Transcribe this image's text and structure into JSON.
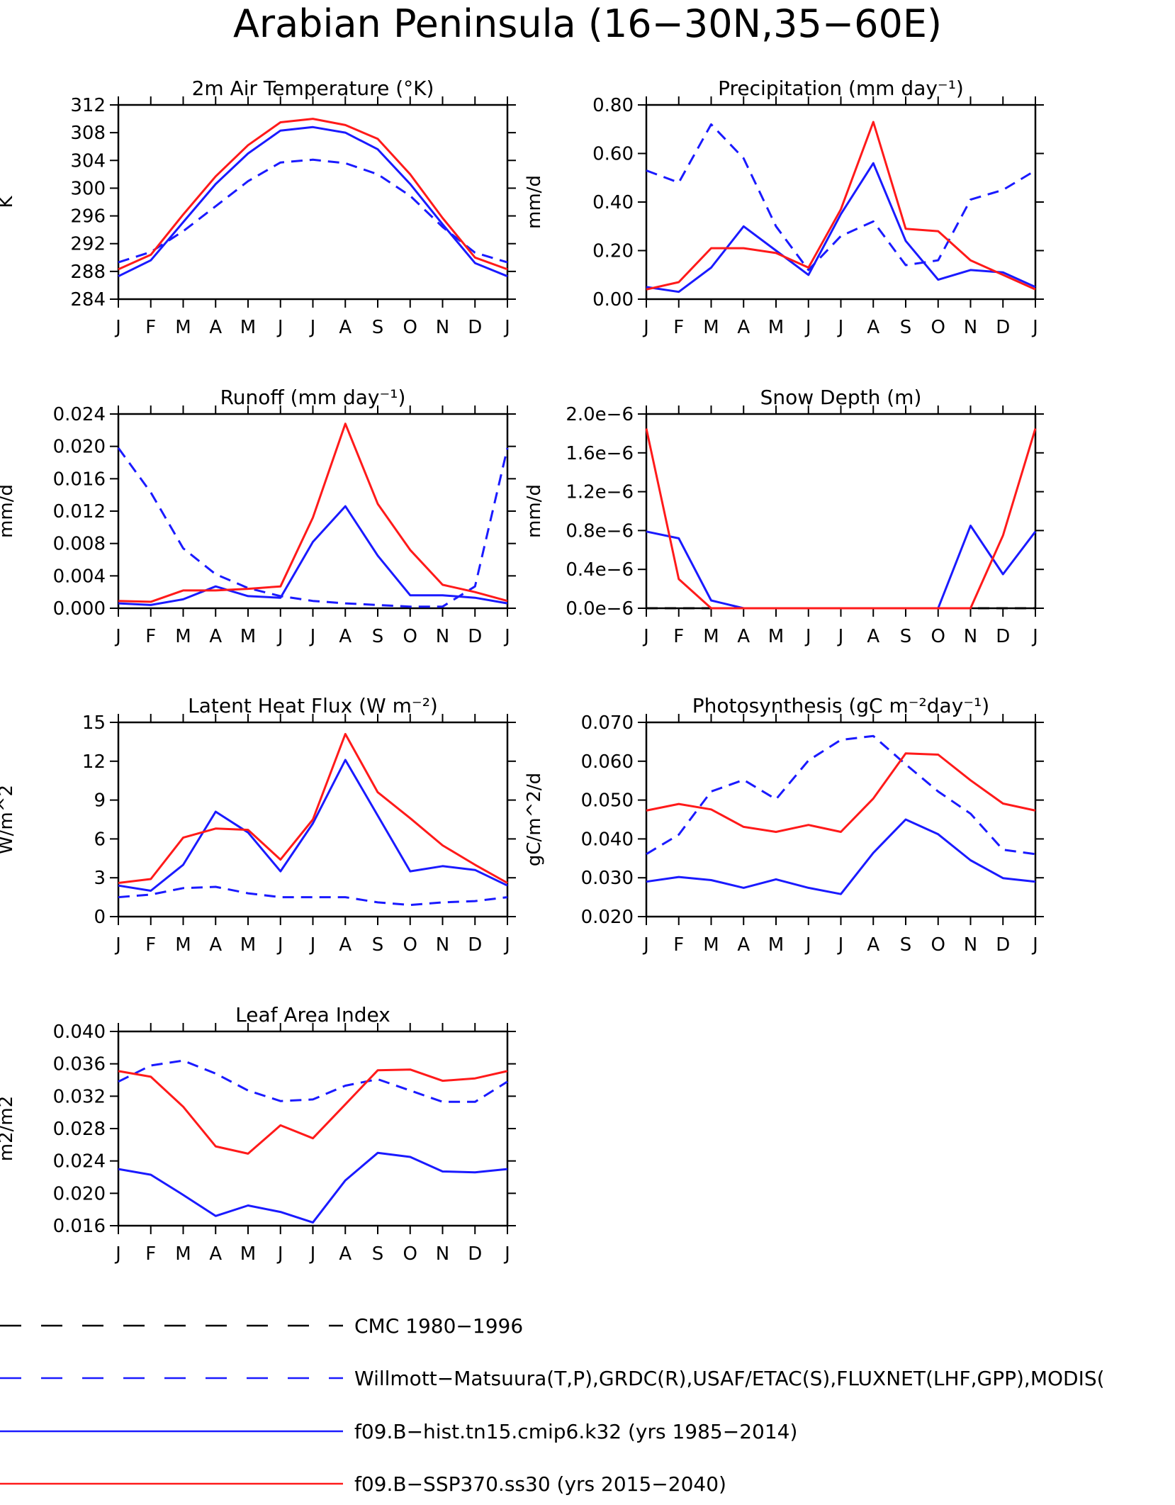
{
  "title": "Arabian Peninsula (16−30N,35−60E)",
  "months": [
    "J",
    "F",
    "M",
    "A",
    "M",
    "J",
    "J",
    "A",
    "S",
    "O",
    "N",
    "D",
    "J"
  ],
  "colors": {
    "obs": "#1a1aff",
    "hist": "#1a1aff",
    "ssp": "#ff1a1a",
    "cmc": "#000000"
  },
  "legend": [
    {
      "label": "CMC 1980−1996",
      "color": "#000000",
      "style": "dash"
    },
    {
      "label": "Willmott−Matsuura(T,P),GRDC(R),USAF/ETAC(S),FLUXNET(LHF,GPP),MODIS(",
      "color": "#1a1aff",
      "style": "dash"
    },
    {
      "label": "f09.B−hist.tn15.cmip6.k32 (yrs 1985−2014)",
      "color": "#1a1aff",
      "style": "solid"
    },
    {
      "label": "f09.B−SSP370.ss30 (yrs 2015−2040)",
      "color": "#ff1a1a",
      "style": "solid"
    }
  ],
  "chart_data": [
    {
      "type": "line",
      "title": "2m Air Temperature (°K)",
      "ylabel": "K",
      "ylim": [
        284,
        312
      ],
      "yticks": [
        284,
        288,
        292,
        296,
        300,
        304,
        308,
        312
      ],
      "ytick_labels": [
        "284",
        "288",
        "292",
        "296",
        "300",
        "304",
        "308",
        "312"
      ],
      "series": [
        {
          "values": [
            289.3,
            290.8,
            293.8,
            297.4,
            301.0,
            303.7,
            304.1,
            303.6,
            302.0,
            298.9,
            294.4,
            290.7,
            289.3
          ],
          "color": "#1a1aff",
          "dash": true
        },
        {
          "values": [
            287.3,
            289.6,
            295.1,
            300.6,
            305.0,
            308.3,
            308.8,
            308.0,
            305.6,
            300.6,
            294.8,
            289.2,
            287.3
          ],
          "color": "#1a1aff",
          "dash": false
        },
        {
          "values": [
            288.3,
            290.4,
            296.2,
            301.7,
            306.2,
            309.5,
            310.0,
            309.1,
            307.1,
            302.0,
            295.7,
            290.0,
            288.3
          ],
          "color": "#ff1a1a",
          "dash": false
        }
      ]
    },
    {
      "type": "line",
      "title": "Precipitation (mm day⁻¹)",
      "ylabel": "mm/d",
      "ylim": [
        0,
        0.8
      ],
      "yticks": [
        0,
        0.2,
        0.4,
        0.6,
        0.8
      ],
      "ytick_labels": [
        "0.00",
        "0.20",
        "0.40",
        "0.60",
        "0.80"
      ],
      "series": [
        {
          "values": [
            0.53,
            0.48,
            0.72,
            0.58,
            0.3,
            0.12,
            0.26,
            0.32,
            0.14,
            0.16,
            0.41,
            0.45,
            0.53
          ],
          "color": "#1a1aff",
          "dash": true
        },
        {
          "values": [
            0.05,
            0.03,
            0.13,
            0.3,
            0.2,
            0.1,
            0.35,
            0.56,
            0.24,
            0.08,
            0.12,
            0.11,
            0.05
          ],
          "color": "#1a1aff",
          "dash": false
        },
        {
          "values": [
            0.04,
            0.07,
            0.21,
            0.21,
            0.19,
            0.13,
            0.37,
            0.73,
            0.29,
            0.28,
            0.16,
            0.1,
            0.04
          ],
          "color": "#ff1a1a",
          "dash": false
        }
      ]
    },
    {
      "type": "line",
      "title": "Runoff (mm day⁻¹)",
      "ylabel": "mm/d",
      "ylim": [
        0,
        0.024
      ],
      "yticks": [
        0,
        0.004,
        0.008,
        0.012,
        0.016,
        0.02,
        0.024
      ],
      "ytick_labels": [
        "0.000",
        "0.004",
        "0.008",
        "0.012",
        "0.016",
        "0.020",
        "0.024"
      ],
      "series": [
        {
          "values": [
            0.0198,
            0.0143,
            0.0074,
            0.0042,
            0.0025,
            0.0015,
            0.0009,
            0.0006,
            0.0004,
            0.0002,
            0.0002,
            0.0027,
            0.0198
          ],
          "color": "#1a1aff",
          "dash": true
        },
        {
          "values": [
            0.0006,
            0.0004,
            0.0011,
            0.0027,
            0.0015,
            0.0013,
            0.0082,
            0.0126,
            0.0065,
            0.0016,
            0.0016,
            0.0013,
            0.0006
          ],
          "color": "#1a1aff",
          "dash": false
        },
        {
          "values": [
            0.0009,
            0.0008,
            0.0022,
            0.0022,
            0.0024,
            0.0027,
            0.0112,
            0.0228,
            0.0129,
            0.0072,
            0.0029,
            0.002,
            0.0009
          ],
          "color": "#ff1a1a",
          "dash": false
        }
      ]
    },
    {
      "type": "line",
      "title": "Snow Depth (m)",
      "ylabel": "mm/d",
      "ylim": [
        0,
        2e-06
      ],
      "yticks": [
        0,
        4e-07,
        8e-07,
        1.2e-06,
        1.6e-06,
        2e-06
      ],
      "ytick_labels": [
        "0.0e−6",
        "0.4e−6",
        "0.8e−6",
        "1.2e−6",
        "1.6e−6",
        "2.0e−6"
      ],
      "series": [
        {
          "values": [
            0,
            0,
            0,
            0,
            0,
            0,
            0,
            0,
            0,
            0,
            0,
            0,
            0
          ],
          "color": "#000000",
          "dash": true
        },
        {
          "values": [
            7.9e-07,
            7.2e-07,
            8e-08,
            0,
            0,
            0,
            0,
            0,
            0,
            0,
            8.5e-07,
            3.5e-07,
            7.9e-07
          ],
          "color": "#1a1aff",
          "dash": false
        },
        {
          "values": [
            1.85e-06,
            3e-07,
            0,
            0,
            0,
            0,
            0,
            0,
            0,
            0,
            0,
            7.5e-07,
            1.85e-06
          ],
          "color": "#ff1a1a",
          "dash": false
        }
      ]
    },
    {
      "type": "line",
      "title": "Latent Heat Flux (W m⁻²)",
      "ylabel": "W/m^2",
      "ylim": [
        0,
        15
      ],
      "yticks": [
        0,
        3,
        6,
        9,
        12,
        15
      ],
      "ytick_labels": [
        "0",
        "3",
        "6",
        "9",
        "12",
        "15"
      ],
      "series": [
        {
          "values": [
            1.5,
            1.7,
            2.2,
            2.3,
            1.8,
            1.5,
            1.5,
            1.5,
            1.1,
            0.9,
            1.1,
            1.2,
            1.5
          ],
          "color": "#1a1aff",
          "dash": true
        },
        {
          "values": [
            2.4,
            2.0,
            4.0,
            8.1,
            6.5,
            3.5,
            7.2,
            12.1,
            7.8,
            3.5,
            3.9,
            3.6,
            2.4
          ],
          "color": "#1a1aff",
          "dash": false
        },
        {
          "values": [
            2.6,
            2.9,
            6.1,
            6.8,
            6.7,
            4.4,
            7.5,
            14.1,
            9.6,
            7.6,
            5.5,
            4.0,
            2.6
          ],
          "color": "#ff1a1a",
          "dash": false
        }
      ]
    },
    {
      "type": "line",
      "title": "Photosynthesis (gC m⁻²day⁻¹)",
      "ylabel": "gC/m^2/d",
      "ylim": [
        0.02,
        0.07
      ],
      "yticks": [
        0.02,
        0.03,
        0.04,
        0.05,
        0.06,
        0.07
      ],
      "ytick_labels": [
        "0.020",
        "0.030",
        "0.040",
        "0.050",
        "0.060",
        "0.070"
      ],
      "series": [
        {
          "values": [
            0.0361,
            0.0411,
            0.0522,
            0.0552,
            0.0502,
            0.0602,
            0.0655,
            0.0665,
            0.0592,
            0.0522,
            0.0465,
            0.0372,
            0.0361
          ],
          "color": "#1a1aff",
          "dash": true
        },
        {
          "values": [
            0.029,
            0.0302,
            0.0294,
            0.0274,
            0.0296,
            0.0274,
            0.0258,
            0.0364,
            0.045,
            0.0412,
            0.0345,
            0.0299,
            0.029
          ],
          "color": "#1a1aff",
          "dash": false
        },
        {
          "values": [
            0.0473,
            0.049,
            0.0476,
            0.0431,
            0.0418,
            0.0436,
            0.0418,
            0.0504,
            0.062,
            0.0617,
            0.0551,
            0.0491,
            0.0473
          ],
          "color": "#ff1a1a",
          "dash": false
        }
      ]
    },
    {
      "type": "line",
      "title": "Leaf Area Index",
      "ylabel": "m2/m2",
      "ylim": [
        0.016,
        0.04
      ],
      "yticks": [
        0.016,
        0.02,
        0.024,
        0.028,
        0.032,
        0.036,
        0.04
      ],
      "ytick_labels": [
        "0.016",
        "0.020",
        "0.024",
        "0.028",
        "0.032",
        "0.036",
        "0.040"
      ],
      "series": [
        {
          "values": [
            0.0338,
            0.0358,
            0.0364,
            0.0348,
            0.0327,
            0.0314,
            0.0316,
            0.0333,
            0.0341,
            0.0327,
            0.0313,
            0.0313,
            0.0338
          ],
          "color": "#1a1aff",
          "dash": true
        },
        {
          "values": [
            0.023,
            0.0223,
            0.0198,
            0.0172,
            0.0185,
            0.0177,
            0.0164,
            0.0216,
            0.025,
            0.0245,
            0.0227,
            0.0226,
            0.023
          ],
          "color": "#1a1aff",
          "dash": false
        },
        {
          "values": [
            0.0351,
            0.0344,
            0.0307,
            0.0258,
            0.0249,
            0.0284,
            0.0268,
            0.031,
            0.0352,
            0.0353,
            0.0339,
            0.0342,
            0.0351
          ],
          "color": "#ff1a1a",
          "dash": false
        }
      ]
    }
  ]
}
